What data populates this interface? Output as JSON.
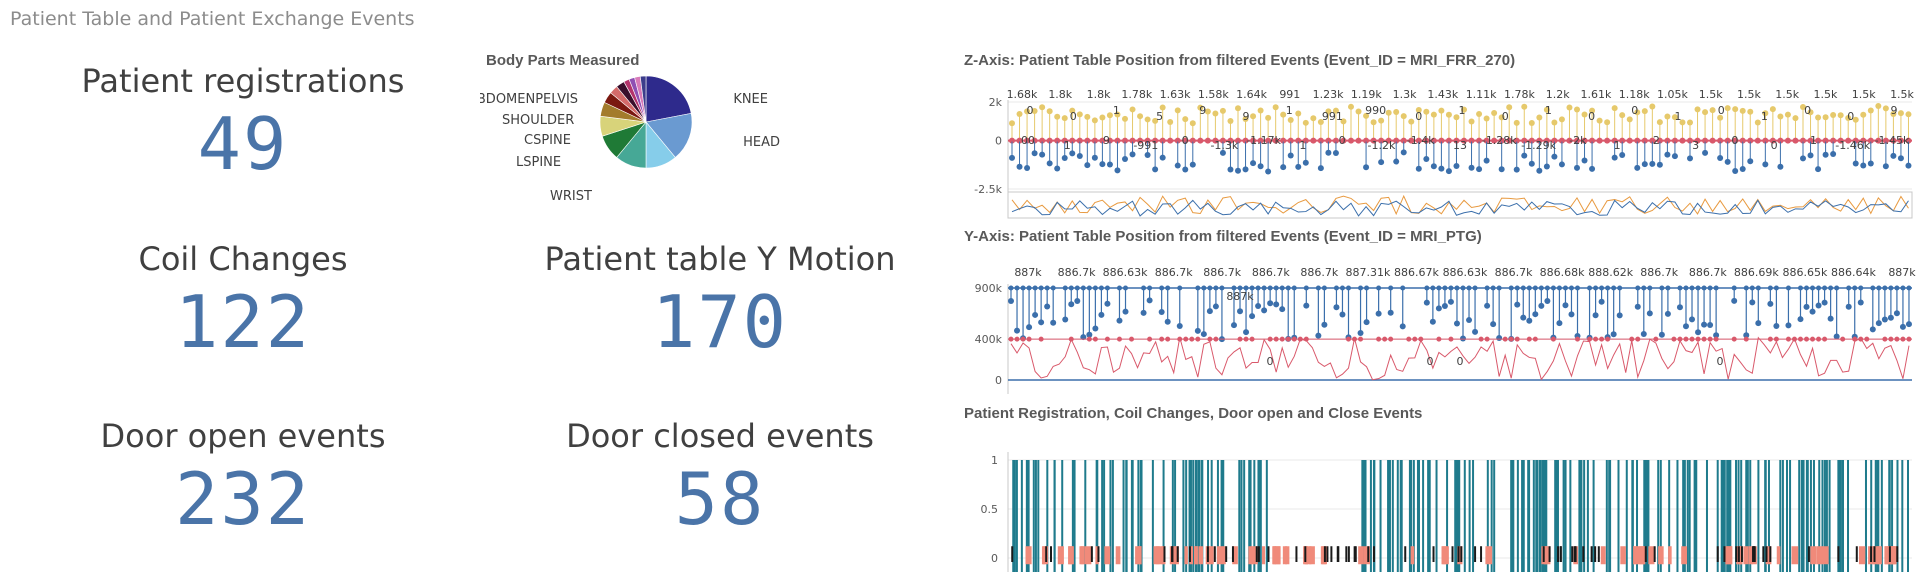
{
  "app": {
    "title": "Patient Table and Patient Exchange Events"
  },
  "kpis": {
    "patient_registrations": {
      "label": "Patient registrations",
      "value": "49"
    },
    "coil_changes": {
      "label": "Coil Changes",
      "value": "122"
    },
    "patient_table_y_motion": {
      "label": "Patient table Y Motion",
      "value": "170"
    },
    "door_open_events": {
      "label": "Door open events",
      "value": "232"
    },
    "door_closed_events": {
      "label": "Door closed events",
      "value": "58"
    }
  },
  "charts": {
    "body_parts": {
      "title": "Body Parts Measured"
    },
    "z_axis": {
      "title": "Z-Axis: Patient Table Position from filtered Events (Event_ID = MRI_FRR_270)"
    },
    "y_axis": {
      "title": "Y-Axis: Patient Table Position from filtered Events (Event_ID = MRI_PTG)"
    },
    "events": {
      "title": "Patient Registration, Coil Changes, Door open and Close Events"
    }
  },
  "colors": {
    "kpi_blue": "#4a74a8",
    "series_blue": "#3b6fab",
    "series_yellow": "#e6c96b",
    "series_red": "#d9596b",
    "series_teal": "#1f7b8c",
    "series_salmon": "#f08a7a",
    "series_black": "#1a1a1a",
    "series_orange": "#e89a40"
  },
  "chart_data": [
    {
      "type": "pie",
      "title": "Body Parts Measured",
      "slices": [
        {
          "label": "KNEE",
          "value": 22,
          "color": "#2e2a8c"
        },
        {
          "label": "HEAD",
          "value": 17,
          "color": "#6a9ad1"
        },
        {
          "label": "",
          "value": 11,
          "color": "#86cdea"
        },
        {
          "label": "WRIST",
          "value": 11,
          "color": "#46a896"
        },
        {
          "label": "LSPINE",
          "value": 9,
          "color": "#1f7a36"
        },
        {
          "label": "CSPINE",
          "value": 7,
          "color": "#d8d37a"
        },
        {
          "label": "",
          "value": 5,
          "color": "#a37b2c"
        },
        {
          "label": "SHOULDER",
          "value": 4,
          "color": "#7a1810"
        },
        {
          "label": "",
          "value": 3,
          "color": "#d46a6a"
        },
        {
          "label": "ABDOMENPELVIS",
          "value": 3,
          "color": "#3a0f2c"
        },
        {
          "label": "",
          "value": 2,
          "color": "#b3336b"
        },
        {
          "label": "",
          "value": 2,
          "color": "#8f4fb3"
        },
        {
          "label": "",
          "value": 2,
          "color": "#d87ab8"
        },
        {
          "label": "",
          "value": 2,
          "color": "#3d3d8c"
        }
      ]
    },
    {
      "type": "line",
      "title": "Z-Axis: Patient Table Position from filtered Events (Event_ID = MRI_FRR_270)",
      "y_ticks": [
        "2k",
        "0",
        "-2.5k"
      ],
      "ylim": [
        -2500,
        2000
      ],
      "top_labels": [
        "1.68k",
        "1.8k",
        "1.8k",
        "1.78k",
        "1.63k",
        "1.58k",
        "1.64k",
        "991",
        "1.23k",
        "1.19k",
        "1.3k",
        "1.43k",
        "1.11k",
        "1.78k",
        "1.2k",
        "1.61k",
        "1.18k",
        "1.05k",
        "1.5k",
        "1.5k",
        "1.5k",
        "1.5k",
        "1.5k",
        "1.5k"
      ],
      "mid_labels": [
        "0",
        "0",
        "1",
        "5",
        "9",
        "9",
        "1",
        "991",
        "990",
        "0",
        "1",
        "0",
        "1",
        "0",
        "0",
        "1",
        "0",
        "1",
        "0",
        "0",
        "9"
      ],
      "bottom_labels": [
        "00",
        "1",
        "9",
        "-991",
        "0",
        "-1.3k",
        "-1.17k",
        "1",
        "0",
        "-1.2k",
        "-1.4k",
        "13",
        "-1.28k",
        "-1.29k",
        "-2k",
        "1",
        "2",
        "3",
        "0",
        "0",
        "1",
        "-1.46k",
        "-1.45k"
      ]
    },
    {
      "type": "line",
      "title": "Y-Axis: Patient Table Position from filtered Events (Event_ID = MRI_PTG)",
      "y_ticks": [
        "900k",
        "400k",
        "0"
      ],
      "ylim": [
        0,
        900000
      ],
      "top_labels": [
        "887k",
        "886.7k",
        "886.63k",
        "886.7k",
        "886.7k",
        "886.7k",
        "886.7k",
        "887.31k",
        "886.67k",
        "886.63k",
        "886.7k",
        "886.68k",
        "888.62k",
        "886.7k",
        "886.7k",
        "886.69k",
        "886.65k",
        "886.64k",
        "887k"
      ],
      "mid_labels": [
        "887k",
        "0",
        "0",
        "0",
        "0"
      ]
    },
    {
      "type": "bar",
      "title": "Patient Registration, Coil Changes, Door open and Close Events",
      "y_ticks": [
        "1",
        "0.5",
        "0"
      ],
      "ylim": [
        0,
        1
      ]
    }
  ]
}
